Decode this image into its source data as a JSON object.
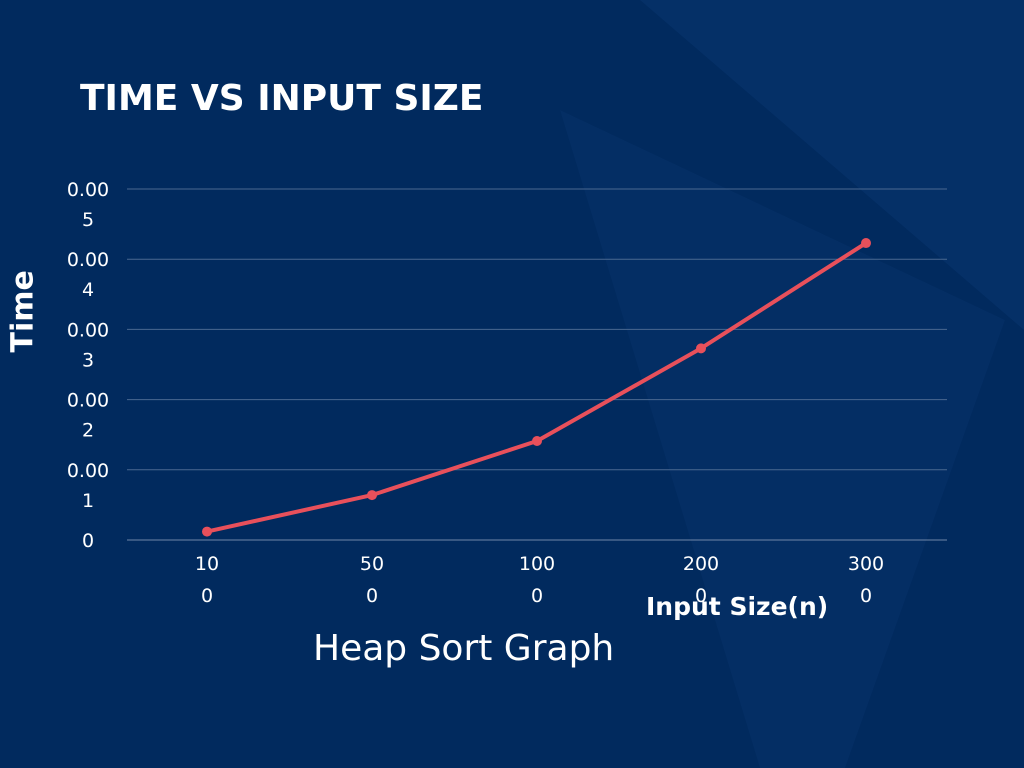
{
  "chart_data": {
    "type": "line",
    "title": "TIME VS INPUT SIZE",
    "xlabel": "Input Size(n)",
    "ylabel": "Time",
    "caption": "Heap Sort Graph",
    "categories": [
      "100",
      "500",
      "1000",
      "2000",
      "3000"
    ],
    "x_tick_labels": [
      [
        "10",
        "0"
      ],
      [
        "50",
        "0"
      ],
      [
        "100",
        "0"
      ],
      [
        "200",
        "0"
      ],
      [
        "300",
        "0"
      ]
    ],
    "y_tick_labels": [
      [
        "0"
      ],
      [
        "0.00",
        "1"
      ],
      [
        "0.00",
        "2"
      ],
      [
        "0.00",
        "3"
      ],
      [
        "0.00",
        "4"
      ],
      [
        "0.00",
        "5"
      ]
    ],
    "ylim": [
      0,
      0.005
    ],
    "y_ticks": [
      0,
      0.001,
      0.002,
      0.003,
      0.004,
      0.005
    ],
    "series": [
      {
        "values": [
          0.00012,
          0.00064,
          0.00141,
          0.00273,
          0.00423
        ]
      }
    ],
    "grid": true,
    "colors": {
      "line": "#e8505b",
      "grid": "#4a6890",
      "background": "#012a5e"
    }
  }
}
